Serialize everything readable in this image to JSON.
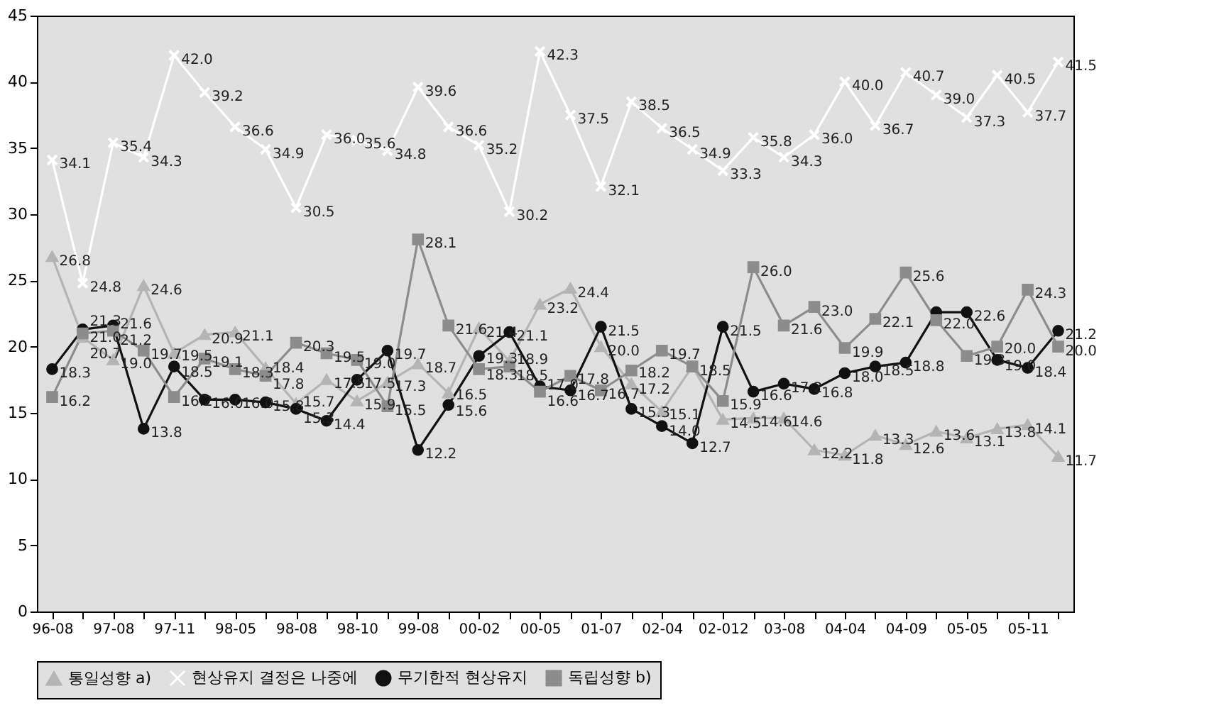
{
  "chart_data": {
    "type": "line",
    "categories": [
      "96-08",
      null,
      "97-08",
      null,
      "97-11",
      null,
      "98-05",
      null,
      "98-08",
      null,
      "98-10",
      null,
      "99-08",
      null,
      "00-02",
      null,
      "00-05",
      null,
      "01-07",
      null,
      "02-04",
      null,
      "02-012",
      null,
      "03-08",
      null,
      "04-04",
      null,
      "04-09",
      null,
      "05-05",
      null,
      "05-11",
      null
    ],
    "ylim": [
      0,
      45
    ],
    "yticks": [
      0,
      5,
      10,
      15,
      20,
      25,
      30,
      35,
      40,
      45
    ],
    "grid": false,
    "legend": "bottom",
    "series": [
      {
        "name": "통일성향 a)",
        "color": "#b4b4b4",
        "marker": "triangle",
        "values": [
          26.8,
          20.7,
          19.0,
          24.6,
          19.5,
          20.9,
          21.1,
          18.4,
          15.7,
          17.5,
          15.9,
          17.3,
          18.7,
          16.5,
          21.4,
          18.9,
          23.2,
          24.4,
          20.0,
          17.2,
          15.1,
          18.5,
          14.5,
          14.6,
          14.6,
          12.2,
          11.8,
          13.3,
          12.6,
          13.6,
          13.1,
          13.8,
          14.1,
          11.7
        ],
        "value_labels": [
          "26.8",
          "20.7",
          "19.0",
          "24.6",
          "19.5",
          "20.9",
          "21.1",
          "18.4",
          "15.7",
          "17.5",
          "15.9",
          "17.3",
          "18.7",
          "16.5",
          "21.4",
          "18.9",
          "23.2",
          "24.4",
          "20.0",
          "17.2",
          "15.1",
          null,
          "14.5",
          "14.6",
          "14.6",
          "12.2",
          "11.8",
          "13.3",
          "12.6",
          "13.6",
          "13.1",
          "13.8",
          "14.1",
          "11.7"
        ]
      },
      {
        "name": "현상유지 결정은 나중에",
        "color": "#ffffff",
        "marker": "cross",
        "values": [
          34.1,
          24.8,
          35.4,
          34.3,
          42.0,
          39.2,
          36.6,
          34.9,
          30.5,
          36.0,
          35.6,
          34.8,
          39.6,
          36.6,
          35.2,
          30.2,
          42.3,
          37.5,
          32.1,
          38.5,
          36.5,
          34.9,
          33.3,
          35.8,
          34.3,
          36.0,
          40.0,
          36.7,
          40.7,
          39.0,
          37.3,
          40.5,
          37.7,
          41.5
        ],
        "value_labels": [
          "34.1",
          "24.8",
          "35.4",
          "34.3",
          "42.0",
          "39.2",
          "36.6",
          "34.9",
          "30.5",
          "36.0",
          "35.6",
          "34.8",
          "39.6",
          "36.6",
          "35.2",
          "30.2",
          "42.3",
          "37.5",
          "32.1",
          "38.5",
          "36.5",
          "34.9",
          "33.3",
          "35.8",
          "34.3",
          "36.0",
          "40.0",
          "36.7",
          "40.7",
          "39.0",
          "37.3",
          "40.5",
          "37.7",
          "41.5"
        ]
      },
      {
        "name": "무기한적 현상유지",
        "color": "#111111",
        "marker": "circle",
        "values": [
          18.3,
          21.3,
          21.6,
          13.8,
          18.5,
          16.0,
          16.0,
          15.8,
          15.3,
          14.4,
          17.5,
          19.7,
          12.2,
          15.6,
          19.3,
          21.1,
          17.0,
          16.7,
          21.5,
          15.3,
          14.0,
          12.7,
          21.5,
          16.6,
          17.2,
          16.8,
          18.0,
          18.5,
          18.8,
          22.6,
          22.6,
          19.0,
          18.4,
          21.2
        ],
        "value_labels": [
          "18.3",
          "21.3",
          "21.6",
          "13.8",
          "18.5",
          "16.0",
          "16.0",
          "15.8",
          "15.3",
          "14.4",
          "17.5",
          "19.7",
          "12.2",
          "15.6",
          "19.3",
          "21.1",
          "17.0",
          "16.7",
          "21.5",
          "15.3",
          "14.0",
          "12.7",
          "21.5",
          "16.6",
          "17.2",
          "16.8",
          "18.0",
          "18.5",
          "18.8",
          null,
          "22.6",
          "19.0",
          "18.4",
          "21.2"
        ]
      },
      {
        "name": "독립성향 b)",
        "color": "#8c8c8c",
        "marker": "square",
        "values": [
          16.2,
          21.0,
          21.2,
          19.7,
          16.2,
          19.1,
          18.3,
          17.8,
          20.3,
          19.5,
          19.0,
          15.5,
          28.1,
          21.6,
          18.3,
          18.5,
          16.6,
          17.8,
          16.7,
          18.2,
          19.7,
          18.5,
          15.9,
          26.0,
          21.6,
          23.0,
          19.9,
          22.1,
          25.6,
          22.0,
          19.3,
          20.0,
          24.3,
          20.0
        ],
        "value_labels": [
          "16.2",
          "21.0",
          "21.2",
          "19.7",
          "16.2",
          "19.1",
          "18.3",
          "17.8",
          "20.3",
          "19.5",
          "19.0",
          "15.5",
          "28.1",
          "21.6",
          "18.3",
          "18.5",
          "16.6",
          "17.8",
          "16.7",
          "18.2",
          "19.7",
          "18.5",
          "15.9",
          "26.0",
          "21.6",
          "23.0",
          "19.9",
          "22.1",
          "25.6",
          "22.0",
          "19.3",
          "20.0",
          "24.3",
          "20.0"
        ]
      }
    ]
  }
}
